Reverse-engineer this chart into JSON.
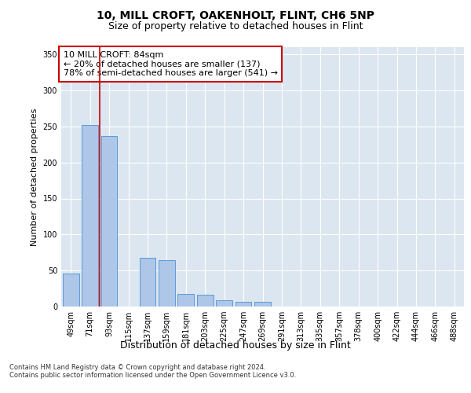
{
  "title1": "10, MILL CROFT, OAKENHOLT, FLINT, CH6 5NP",
  "title2": "Size of property relative to detached houses in Flint",
  "xlabel": "Distribution of detached houses by size in Flint",
  "ylabel": "Number of detached properties",
  "footnote": "Contains HM Land Registry data © Crown copyright and database right 2024.\nContains public sector information licensed under the Open Government Licence v3.0.",
  "categories": [
    "49sqm",
    "71sqm",
    "93sqm",
    "115sqm",
    "137sqm",
    "159sqm",
    "181sqm",
    "203sqm",
    "225sqm",
    "247sqm",
    "269sqm",
    "291sqm",
    "313sqm",
    "335sqm",
    "357sqm",
    "378sqm",
    "400sqm",
    "422sqm",
    "444sqm",
    "466sqm",
    "488sqm"
  ],
  "values": [
    46,
    252,
    237,
    0,
    68,
    64,
    18,
    16,
    9,
    7,
    7,
    0,
    0,
    0,
    0,
    0,
    0,
    0,
    0,
    0,
    0
  ],
  "bar_color": "#aec6e8",
  "bar_edge_color": "#5b9bd5",
  "bg_color": "#ffffff",
  "plot_bg_color": "#dce6f1",
  "grid_color": "#ffffff",
  "vline_color": "#cc0000",
  "annotation_text": "10 MILL CROFT: 84sqm\n← 20% of detached houses are smaller (137)\n78% of semi-detached houses are larger (541) →",
  "annotation_box_facecolor": "#ffffff",
  "annotation_box_edgecolor": "#cc0000",
  "ylim": [
    0,
    360
  ],
  "yticks": [
    0,
    50,
    100,
    150,
    200,
    250,
    300,
    350
  ],
  "title1_fontsize": 10,
  "title2_fontsize": 9,
  "xlabel_fontsize": 9,
  "ylabel_fontsize": 8,
  "annotation_fontsize": 8,
  "tick_fontsize": 7,
  "footnote_fontsize": 6
}
